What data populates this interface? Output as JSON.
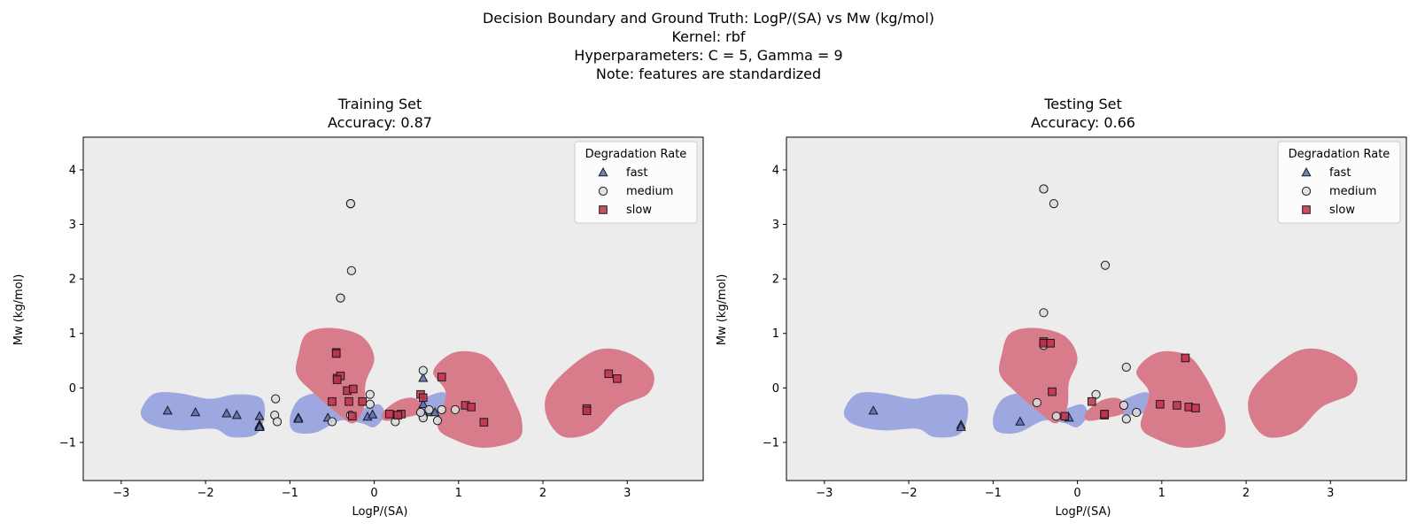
{
  "suptitle": [
    "Decision Boundary and Ground Truth: LogP/(SA) vs Mw (kg/mol)",
    "Kernel: rbf",
    "Hyperparameters: C = 5, Gamma = 9",
    "Note: features are standardized"
  ],
  "colors": {
    "background": "#ececec",
    "region_fast": "#9ea8e0",
    "region_slow": "#d87b8b",
    "marker_fast": "#5a6bb0",
    "marker_medium": "#dcdcdc",
    "marker_slow": "#c0304a",
    "edge": "#1a1a1a"
  },
  "chart_data": [
    {
      "type": "scatter",
      "title": "Training Set",
      "subtitle": "Accuracy: 0.87",
      "xlabel": "LogP/(SA)",
      "ylabel": "Mw (kg/mol)",
      "xlim": [
        -3.45,
        3.9
      ],
      "ylim": [
        -1.7,
        4.6
      ],
      "xticks": [
        -3,
        -2,
        -1,
        0,
        1,
        2,
        3
      ],
      "yticks": [
        -1,
        0,
        1,
        2,
        3,
        4
      ],
      "grid": false,
      "legend": {
        "title": "Degradation Rate",
        "placement": "top-right",
        "entries": [
          "fast",
          "medium",
          "slow"
        ]
      },
      "regions": {
        "fast": [
          [
            [
              -2.75,
              -0.35
            ],
            [
              -2.6,
              -0.1
            ],
            [
              -2.3,
              -0.1
            ],
            [
              -1.95,
              -0.2
            ],
            [
              -1.65,
              -0.12
            ],
            [
              -1.35,
              -0.18
            ],
            [
              -1.3,
              -0.5
            ],
            [
              -1.4,
              -0.85
            ],
            [
              -1.7,
              -0.9
            ],
            [
              -1.9,
              -0.75
            ],
            [
              -2.3,
              -0.78
            ],
            [
              -2.6,
              -0.7
            ],
            [
              -2.75,
              -0.55
            ]
          ],
          [
            [
              -1.0,
              -0.55
            ],
            [
              -0.9,
              -0.22
            ],
            [
              -0.7,
              -0.1
            ],
            [
              -0.55,
              -0.18
            ],
            [
              -0.45,
              -0.35
            ],
            [
              -0.2,
              -0.4
            ],
            [
              0.05,
              -0.3
            ],
            [
              0.12,
              -0.5
            ],
            [
              0.0,
              -0.72
            ],
            [
              -0.15,
              -0.65
            ],
            [
              -0.4,
              -0.6
            ],
            [
              -0.7,
              -0.82
            ],
            [
              -0.95,
              -0.8
            ]
          ],
          [
            [
              0.42,
              -0.35
            ],
            [
              0.6,
              -0.18
            ],
            [
              0.82,
              -0.08
            ],
            [
              0.92,
              -0.25
            ],
            [
              0.8,
              -0.45
            ],
            [
              0.62,
              -0.5
            ],
            [
              0.45,
              -0.45
            ]
          ]
        ],
        "slow": [
          [
            [
              -0.9,
              0.6
            ],
            [
              -0.8,
              1.0
            ],
            [
              -0.5,
              1.1
            ],
            [
              -0.15,
              0.95
            ],
            [
              0.0,
              0.55
            ],
            [
              -0.1,
              0.1
            ],
            [
              -0.12,
              -0.35
            ],
            [
              -0.25,
              -0.65
            ],
            [
              -0.45,
              -0.45
            ],
            [
              -0.75,
              -0.05
            ],
            [
              -0.92,
              0.25
            ]
          ],
          [
            [
              0.1,
              -0.45
            ],
            [
              0.3,
              -0.22
            ],
            [
              0.5,
              -0.2
            ],
            [
              0.55,
              -0.45
            ],
            [
              0.35,
              -0.55
            ],
            [
              0.12,
              -0.6
            ]
          ],
          [
            [
              0.7,
              0.3
            ],
            [
              0.95,
              0.65
            ],
            [
              1.3,
              0.6
            ],
            [
              1.5,
              0.25
            ],
            [
              1.65,
              -0.2
            ],
            [
              1.75,
              -0.6
            ],
            [
              1.7,
              -0.95
            ],
            [
              1.3,
              -1.1
            ],
            [
              0.95,
              -0.95
            ],
            [
              0.75,
              -0.7
            ],
            [
              0.85,
              -0.1
            ]
          ],
          [
            [
              2.05,
              -0.1
            ],
            [
              2.3,
              0.35
            ],
            [
              2.65,
              0.7
            ],
            [
              3.0,
              0.65
            ],
            [
              3.3,
              0.3
            ],
            [
              3.25,
              -0.1
            ],
            [
              2.9,
              -0.35
            ],
            [
              2.6,
              -0.8
            ],
            [
              2.25,
              -0.9
            ],
            [
              2.05,
              -0.55
            ]
          ]
        ]
      },
      "series": [
        {
          "name": "fast",
          "marker": "triangle",
          "x": [
            -2.45,
            -2.12,
            -1.75,
            -1.63,
            -1.36,
            -1.36,
            -1.36,
            -1.36,
            -1.36,
            -1.36,
            -1.36,
            -1.36,
            -1.36,
            -0.9,
            -0.9,
            -0.9,
            -0.55,
            -0.08,
            -0.02,
            0.58,
            0.58,
            0.64,
            0.72
          ],
          "y": [
            -0.42,
            -0.45,
            -0.47,
            -0.5,
            -0.52,
            -0.68,
            -0.68,
            -0.68,
            -0.7,
            -0.7,
            -0.72,
            -0.72,
            -0.72,
            -0.55,
            -0.55,
            -0.57,
            -0.55,
            -0.53,
            -0.49,
            0.18,
            -0.3,
            -0.45,
            -0.45
          ]
        },
        {
          "name": "medium",
          "marker": "circle",
          "x": [
            -0.28,
            -0.28,
            -0.28,
            -0.27,
            -0.4,
            -0.4,
            -1.17,
            -1.18,
            -1.15,
            -0.5,
            -0.28,
            -0.05,
            0.25,
            0.58,
            0.58,
            0.58,
            0.58,
            0.55,
            0.65,
            0.8,
            0.8,
            0.96,
            0.75,
            -0.05
          ],
          "y": [
            3.38,
            3.38,
            3.38,
            2.15,
            1.65,
            1.65,
            -0.2,
            -0.5,
            -0.62,
            -0.62,
            -0.5,
            -0.12,
            -0.62,
            0.32,
            -0.52,
            -0.52,
            -0.55,
            -0.45,
            -0.4,
            -0.4,
            -0.4,
            -0.4,
            -0.6,
            -0.3
          ]
        },
        {
          "name": "slow",
          "marker": "square",
          "x": [
            -0.45,
            -0.45,
            -0.44,
            -0.4,
            -0.44,
            -0.32,
            -0.25,
            -0.5,
            -0.3,
            -0.14,
            -0.26,
            0.18,
            0.32,
            0.28,
            0.55,
            0.58,
            0.8,
            1.08,
            1.15,
            1.3,
            2.52,
            2.52,
            2.78,
            2.88
          ],
          "y": [
            0.65,
            0.63,
            0.18,
            0.22,
            0.15,
            -0.05,
            -0.02,
            -0.25,
            -0.25,
            -0.25,
            -0.52,
            -0.48,
            -0.48,
            -0.5,
            -0.12,
            -0.18,
            0.2,
            -0.32,
            -0.35,
            -0.63,
            -0.38,
            -0.42,
            0.26,
            0.17
          ]
        }
      ]
    },
    {
      "type": "scatter",
      "title": "Testing Set",
      "subtitle": "Accuracy: 0.66",
      "xlabel": "LogP/(SA)",
      "ylabel": "Mw (kg/mol)",
      "xlim": [
        -3.45,
        3.9
      ],
      "ylim": [
        -1.7,
        4.6
      ],
      "xticks": [
        -3,
        -2,
        -1,
        0,
        1,
        2,
        3
      ],
      "yticks": [
        -1,
        0,
        1,
        2,
        3,
        4
      ],
      "grid": false,
      "legend": {
        "title": "Degradation Rate",
        "placement": "top-right",
        "entries": [
          "fast",
          "medium",
          "slow"
        ]
      },
      "regions": {
        "fast": [
          [
            [
              -2.75,
              -0.35
            ],
            [
              -2.6,
              -0.1
            ],
            [
              -2.3,
              -0.1
            ],
            [
              -1.95,
              -0.2
            ],
            [
              -1.65,
              -0.12
            ],
            [
              -1.35,
              -0.18
            ],
            [
              -1.3,
              -0.5
            ],
            [
              -1.4,
              -0.85
            ],
            [
              -1.7,
              -0.9
            ],
            [
              -1.9,
              -0.75
            ],
            [
              -2.3,
              -0.78
            ],
            [
              -2.6,
              -0.7
            ],
            [
              -2.75,
              -0.55
            ]
          ],
          [
            [
              -1.0,
              -0.55
            ],
            [
              -0.9,
              -0.22
            ],
            [
              -0.7,
              -0.1
            ],
            [
              -0.55,
              -0.18
            ],
            [
              -0.45,
              -0.35
            ],
            [
              -0.2,
              -0.4
            ],
            [
              0.05,
              -0.3
            ],
            [
              0.12,
              -0.5
            ],
            [
              0.0,
              -0.72
            ],
            [
              -0.15,
              -0.65
            ],
            [
              -0.4,
              -0.6
            ],
            [
              -0.7,
              -0.82
            ],
            [
              -0.95,
              -0.8
            ]
          ],
          [
            [
              0.42,
              -0.35
            ],
            [
              0.6,
              -0.18
            ],
            [
              0.82,
              -0.08
            ],
            [
              0.92,
              -0.25
            ],
            [
              0.8,
              -0.45
            ],
            [
              0.62,
              -0.5
            ],
            [
              0.45,
              -0.45
            ]
          ]
        ],
        "slow": [
          [
            [
              -0.9,
              0.6
            ],
            [
              -0.8,
              1.0
            ],
            [
              -0.5,
              1.1
            ],
            [
              -0.15,
              0.95
            ],
            [
              0.0,
              0.55
            ],
            [
              -0.1,
              0.1
            ],
            [
              -0.12,
              -0.35
            ],
            [
              -0.25,
              -0.65
            ],
            [
              -0.45,
              -0.45
            ],
            [
              -0.75,
              -0.05
            ],
            [
              -0.92,
              0.25
            ]
          ],
          [
            [
              0.1,
              -0.45
            ],
            [
              0.3,
              -0.22
            ],
            [
              0.5,
              -0.2
            ],
            [
              0.55,
              -0.45
            ],
            [
              0.35,
              -0.55
            ],
            [
              0.12,
              -0.6
            ]
          ],
          [
            [
              0.7,
              0.3
            ],
            [
              0.95,
              0.65
            ],
            [
              1.3,
              0.6
            ],
            [
              1.5,
              0.25
            ],
            [
              1.65,
              -0.2
            ],
            [
              1.75,
              -0.6
            ],
            [
              1.7,
              -0.95
            ],
            [
              1.3,
              -1.1
            ],
            [
              0.95,
              -0.95
            ],
            [
              0.75,
              -0.7
            ],
            [
              0.85,
              -0.1
            ]
          ],
          [
            [
              2.05,
              -0.1
            ],
            [
              2.3,
              0.35
            ],
            [
              2.65,
              0.7
            ],
            [
              3.0,
              0.65
            ],
            [
              3.3,
              0.3
            ],
            [
              3.25,
              -0.1
            ],
            [
              2.9,
              -0.35
            ],
            [
              2.6,
              -0.8
            ],
            [
              2.25,
              -0.9
            ],
            [
              2.05,
              -0.55
            ]
          ]
        ]
      },
      "series": [
        {
          "name": "fast",
          "marker": "triangle",
          "x": [
            -2.42,
            -1.38,
            -1.38,
            -0.68,
            -0.1
          ],
          "y": [
            -0.42,
            -0.68,
            -0.72,
            -0.62,
            -0.55
          ]
        },
        {
          "name": "medium",
          "marker": "circle",
          "x": [
            -0.4,
            -0.4,
            -0.28,
            0.33,
            -0.4,
            -0.4,
            0.58,
            -0.48,
            0.22,
            0.55,
            0.7,
            0.58,
            -0.25
          ],
          "y": [
            3.65,
            3.65,
            3.38,
            2.25,
            1.38,
            0.78,
            0.38,
            -0.27,
            -0.12,
            -0.32,
            -0.45,
            -0.57,
            -0.52
          ]
        },
        {
          "name": "slow",
          "marker": "square",
          "x": [
            -0.4,
            -0.4,
            -0.32,
            -0.3,
            0.17,
            0.32,
            0.32,
            -0.15,
            0.98,
            1.18,
            1.28,
            1.32,
            1.4
          ],
          "y": [
            0.85,
            0.82,
            0.82,
            -0.07,
            -0.25,
            -0.5,
            -0.48,
            -0.52,
            -0.3,
            -0.32,
            0.55,
            -0.35,
            -0.37
          ]
        }
      ]
    }
  ]
}
